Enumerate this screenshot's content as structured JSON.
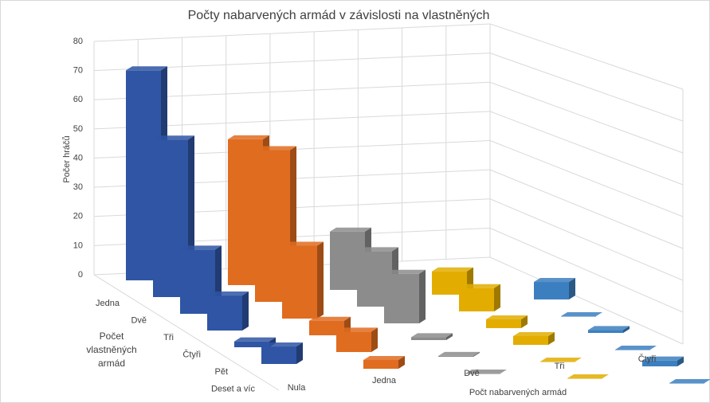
{
  "chart_data": {
    "type": "bar3d",
    "title": "Počty nabarvených armád v závislosti na vlastněných",
    "y_label": "Počer hráčů",
    "depth_label": "Počet vlastněných armád",
    "x_label": "Počt nabarvených armád",
    "categories": [
      "Nula",
      "Jedna",
      "Dvě",
      "Tři",
      "Čtyři"
    ],
    "colors": [
      "#2f55a4",
      "#e06c20",
      "#8c8c8c",
      "#e2ad00",
      "#3c7fc0"
    ],
    "series": [
      {
        "name": "Jedna",
        "values": [
          72,
          50,
          20,
          8,
          6
        ]
      },
      {
        "name": "Dvě",
        "values": [
          54,
          52,
          19,
          8,
          0
        ]
      },
      {
        "name": "Tři",
        "values": [
          22,
          25,
          17,
          3,
          1
        ]
      },
      {
        "name": "Čtyři",
        "values": [
          12,
          5,
          1,
          3,
          0
        ]
      },
      {
        "name": "Pět",
        "values": [
          2,
          7,
          0.3,
          0,
          2
        ]
      },
      {
        "name": "Deset a víc",
        "values": [
          6,
          3,
          0,
          0,
          0
        ]
      }
    ],
    "ylim": [
      0,
      80
    ],
    "yticks": [
      0,
      10,
      20,
      30,
      40,
      50,
      60,
      70,
      80
    ],
    "grid": true
  }
}
